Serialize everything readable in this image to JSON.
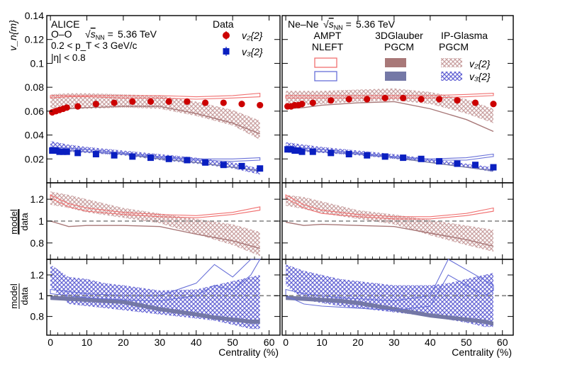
{
  "colors": {
    "data_v2": "#cc0000",
    "data_v3": "#0a1fc0",
    "ampt_v2": "#f07070",
    "ampt_v3": "#6870d8",
    "glauber_v2": "#a87878",
    "glauber_v3": "#7478a6",
    "glasma_v2": "#c9a0a0",
    "glasma_v3": "#6464d4",
    "ref_line": "#808080"
  },
  "axes": {
    "vn_ylabel": "v_n{m}",
    "ratio_ylabel_top": "model",
    "ratio_ylabel_bottom": "data",
    "xlabel": "Centrality (%)",
    "x_ticks": [
      "0",
      "10",
      "20",
      "30",
      "40",
      "50",
      "60"
    ],
    "vn_ticks": [
      "0.02",
      "0.04",
      "0.06",
      "0.08",
      "0.1",
      "0.12",
      "0.14"
    ],
    "ratio1_ticks": [
      "0.8",
      "1",
      "1.2"
    ],
    "ratio2_ticks": [
      "0.8",
      "1",
      "1.2"
    ]
  },
  "left_panel": {
    "experiment": "ALICE",
    "system": "O–O",
    "energy": "5.36 TeV",
    "pt_cut": "0.2 < p_T < 3 GeV/c",
    "eta_cut": "|η| < 0.8"
  },
  "right_panel": {
    "system": "Ne–Ne",
    "energy": "5.36 TeV"
  },
  "legend": {
    "data_title": "Data",
    "v2_label": "v₂{2}",
    "v3_label": "v₃{2}",
    "ampt_line1": "AMPT",
    "ampt_line2": "NLEFT",
    "glauber_line1": "3DGlauber",
    "glauber_line2": "PGCM",
    "glasma_line1": "IP-Glasma",
    "glasma_line2": "PGCM"
  },
  "chart_data": [
    {
      "type": "scatter",
      "panel": "O–O vn",
      "xlabel": "Centrality (%)",
      "ylabel": "v_n{m}",
      "xlim": [
        -1,
        63
      ],
      "ylim": [
        0,
        0.14
      ],
      "series": [
        {
          "name": "v₂{2}",
          "x": [
            0.5,
            1.5,
            2.5,
            3.5,
            4.5,
            7.5,
            12.5,
            17.5,
            22.5,
            27.5,
            32.5,
            37.5,
            42.5,
            47.5,
            52.5,
            57.5
          ],
          "y": [
            0.059,
            0.06,
            0.061,
            0.062,
            0.063,
            0.064,
            0.066,
            0.067,
            0.068,
            0.068,
            0.068,
            0.068,
            0.067,
            0.067,
            0.066,
            0.065
          ]
        },
        {
          "name": "v₃{2}",
          "x": [
            0.5,
            1.5,
            2.5,
            3.5,
            4.5,
            7.5,
            12.5,
            17.5,
            22.5,
            27.5,
            32.5,
            37.5,
            42.5,
            47.5,
            52.5,
            57.5
          ],
          "y": [
            0.027,
            0.027,
            0.026,
            0.026,
            0.026,
            0.025,
            0.024,
            0.023,
            0.022,
            0.021,
            0.02,
            0.019,
            0.017,
            0.015,
            0.014,
            0.012
          ]
        }
      ]
    },
    {
      "type": "scatter",
      "panel": "Ne–Ne vn",
      "xlabel": "Centrality (%)",
      "xlim": [
        -1,
        63
      ],
      "ylim": [
        0,
        0.14
      ],
      "series": [
        {
          "name": "v₂{2}",
          "x": [
            0.5,
            1.5,
            2.5,
            3.5,
            4.5,
            7.5,
            12.5,
            17.5,
            22.5,
            27.5,
            32.5,
            37.5,
            42.5,
            47.5,
            52.5,
            57.5
          ],
          "y": [
            0.064,
            0.064,
            0.065,
            0.065,
            0.066,
            0.067,
            0.069,
            0.07,
            0.07,
            0.071,
            0.071,
            0.07,
            0.07,
            0.069,
            0.067,
            0.066
          ]
        },
        {
          "name": "v₃{2}",
          "x": [
            0.5,
            1.5,
            2.5,
            3.5,
            4.5,
            7.5,
            12.5,
            17.5,
            22.5,
            27.5,
            32.5,
            37.5,
            42.5,
            47.5,
            52.5,
            57.5
          ],
          "y": [
            0.028,
            0.028,
            0.027,
            0.027,
            0.026,
            0.026,
            0.025,
            0.024,
            0.023,
            0.022,
            0.021,
            0.02,
            0.018,
            0.016,
            0.015,
            0.013
          ]
        }
      ]
    }
  ]
}
